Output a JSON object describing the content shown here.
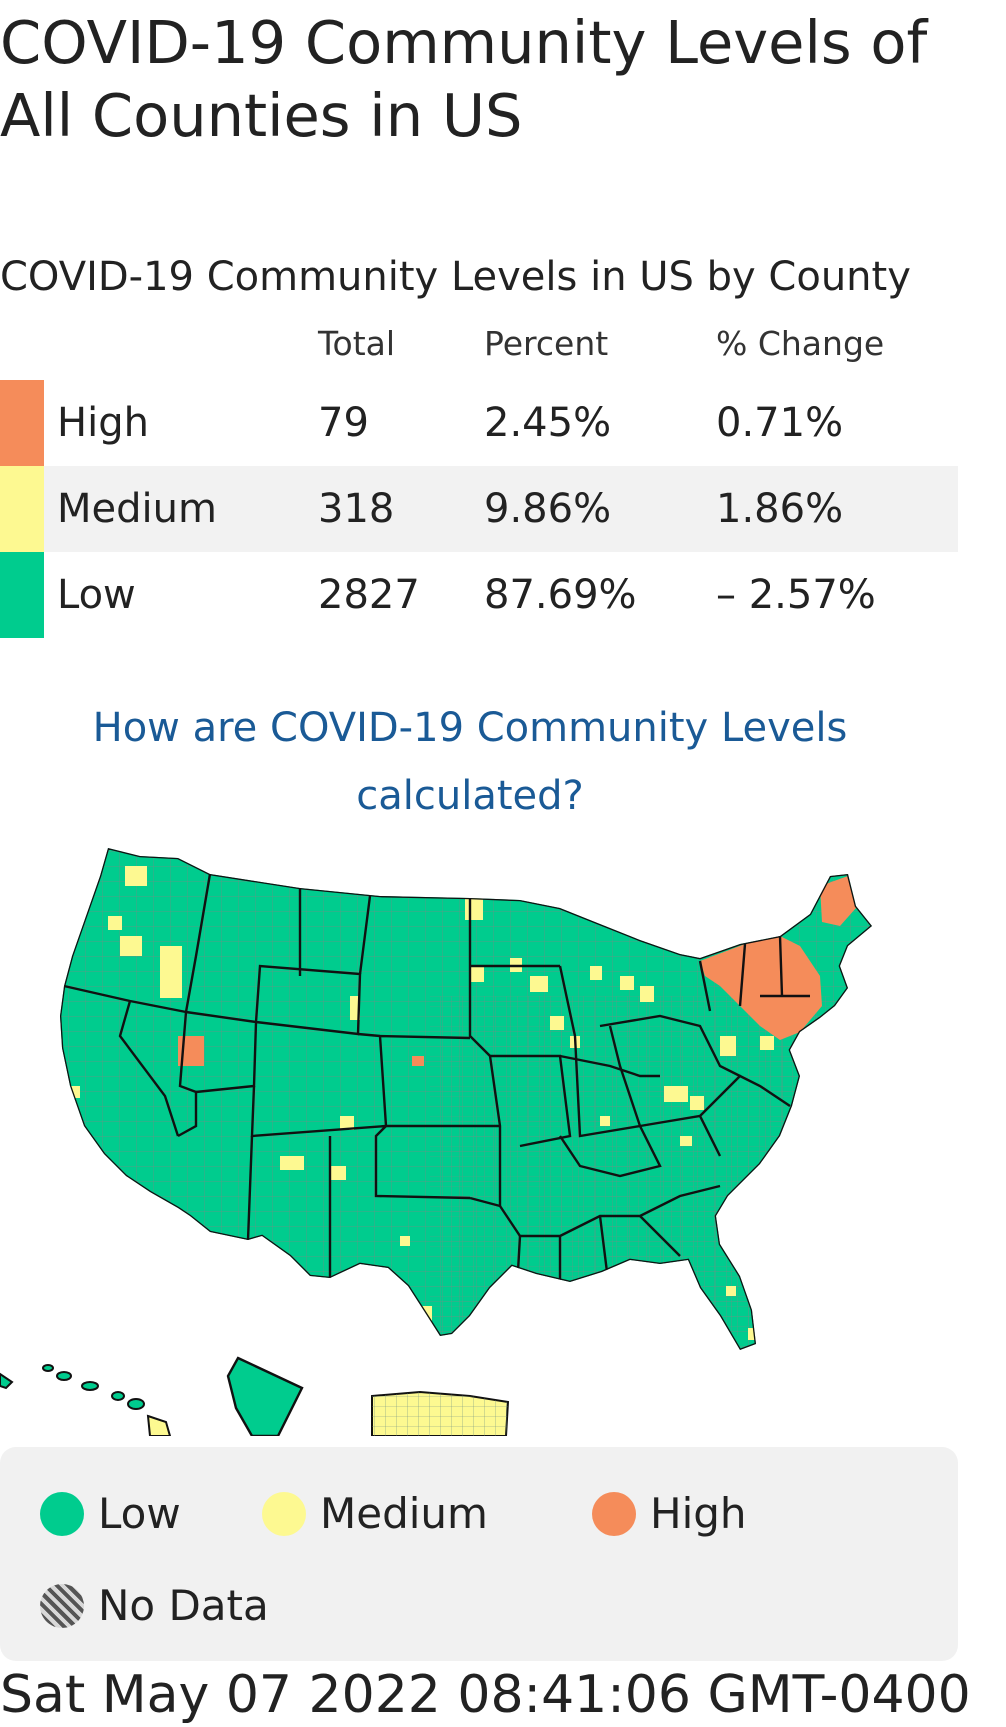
{
  "page": {
    "title": "COVID-19 Community Levels of All Counties in US"
  },
  "table": {
    "title": "COVID-19 Community Levels in US by County",
    "headers": {
      "total": "Total",
      "percent": "Percent",
      "change": "% Change"
    },
    "rows": [
      {
        "level": "High",
        "total": "79",
        "percent": "2.45%",
        "change": "0.71%",
        "color": "#f58c5a"
      },
      {
        "level": "Medium",
        "total": "318",
        "percent": "9.86%",
        "change": "1.86%",
        "color": "#fdf991"
      },
      {
        "level": "Low",
        "total": "2827",
        "percent": "87.69%",
        "change": "– 2.57%",
        "color": "#00cc8e"
      }
    ]
  },
  "link": {
    "text": "How are COVID-19 Community Levels calculated?",
    "color": "#1a5a96"
  },
  "map": {
    "colors": {
      "low": "#00cc8e",
      "medium": "#fdf991",
      "high": "#f58c5a",
      "county_border": "#7a7a7a",
      "state_border": "#111111"
    }
  },
  "legend": {
    "items": [
      {
        "label": "Low",
        "color": "#00cc8e"
      },
      {
        "label": "Medium",
        "color": "#fdf991"
      },
      {
        "label": "High",
        "color": "#f58c5a"
      },
      {
        "label": "No Data",
        "icon": "hatched-circle-icon"
      }
    ]
  },
  "timestamp": "Sat May 07 2022 08:41:06 GMT-0400"
}
